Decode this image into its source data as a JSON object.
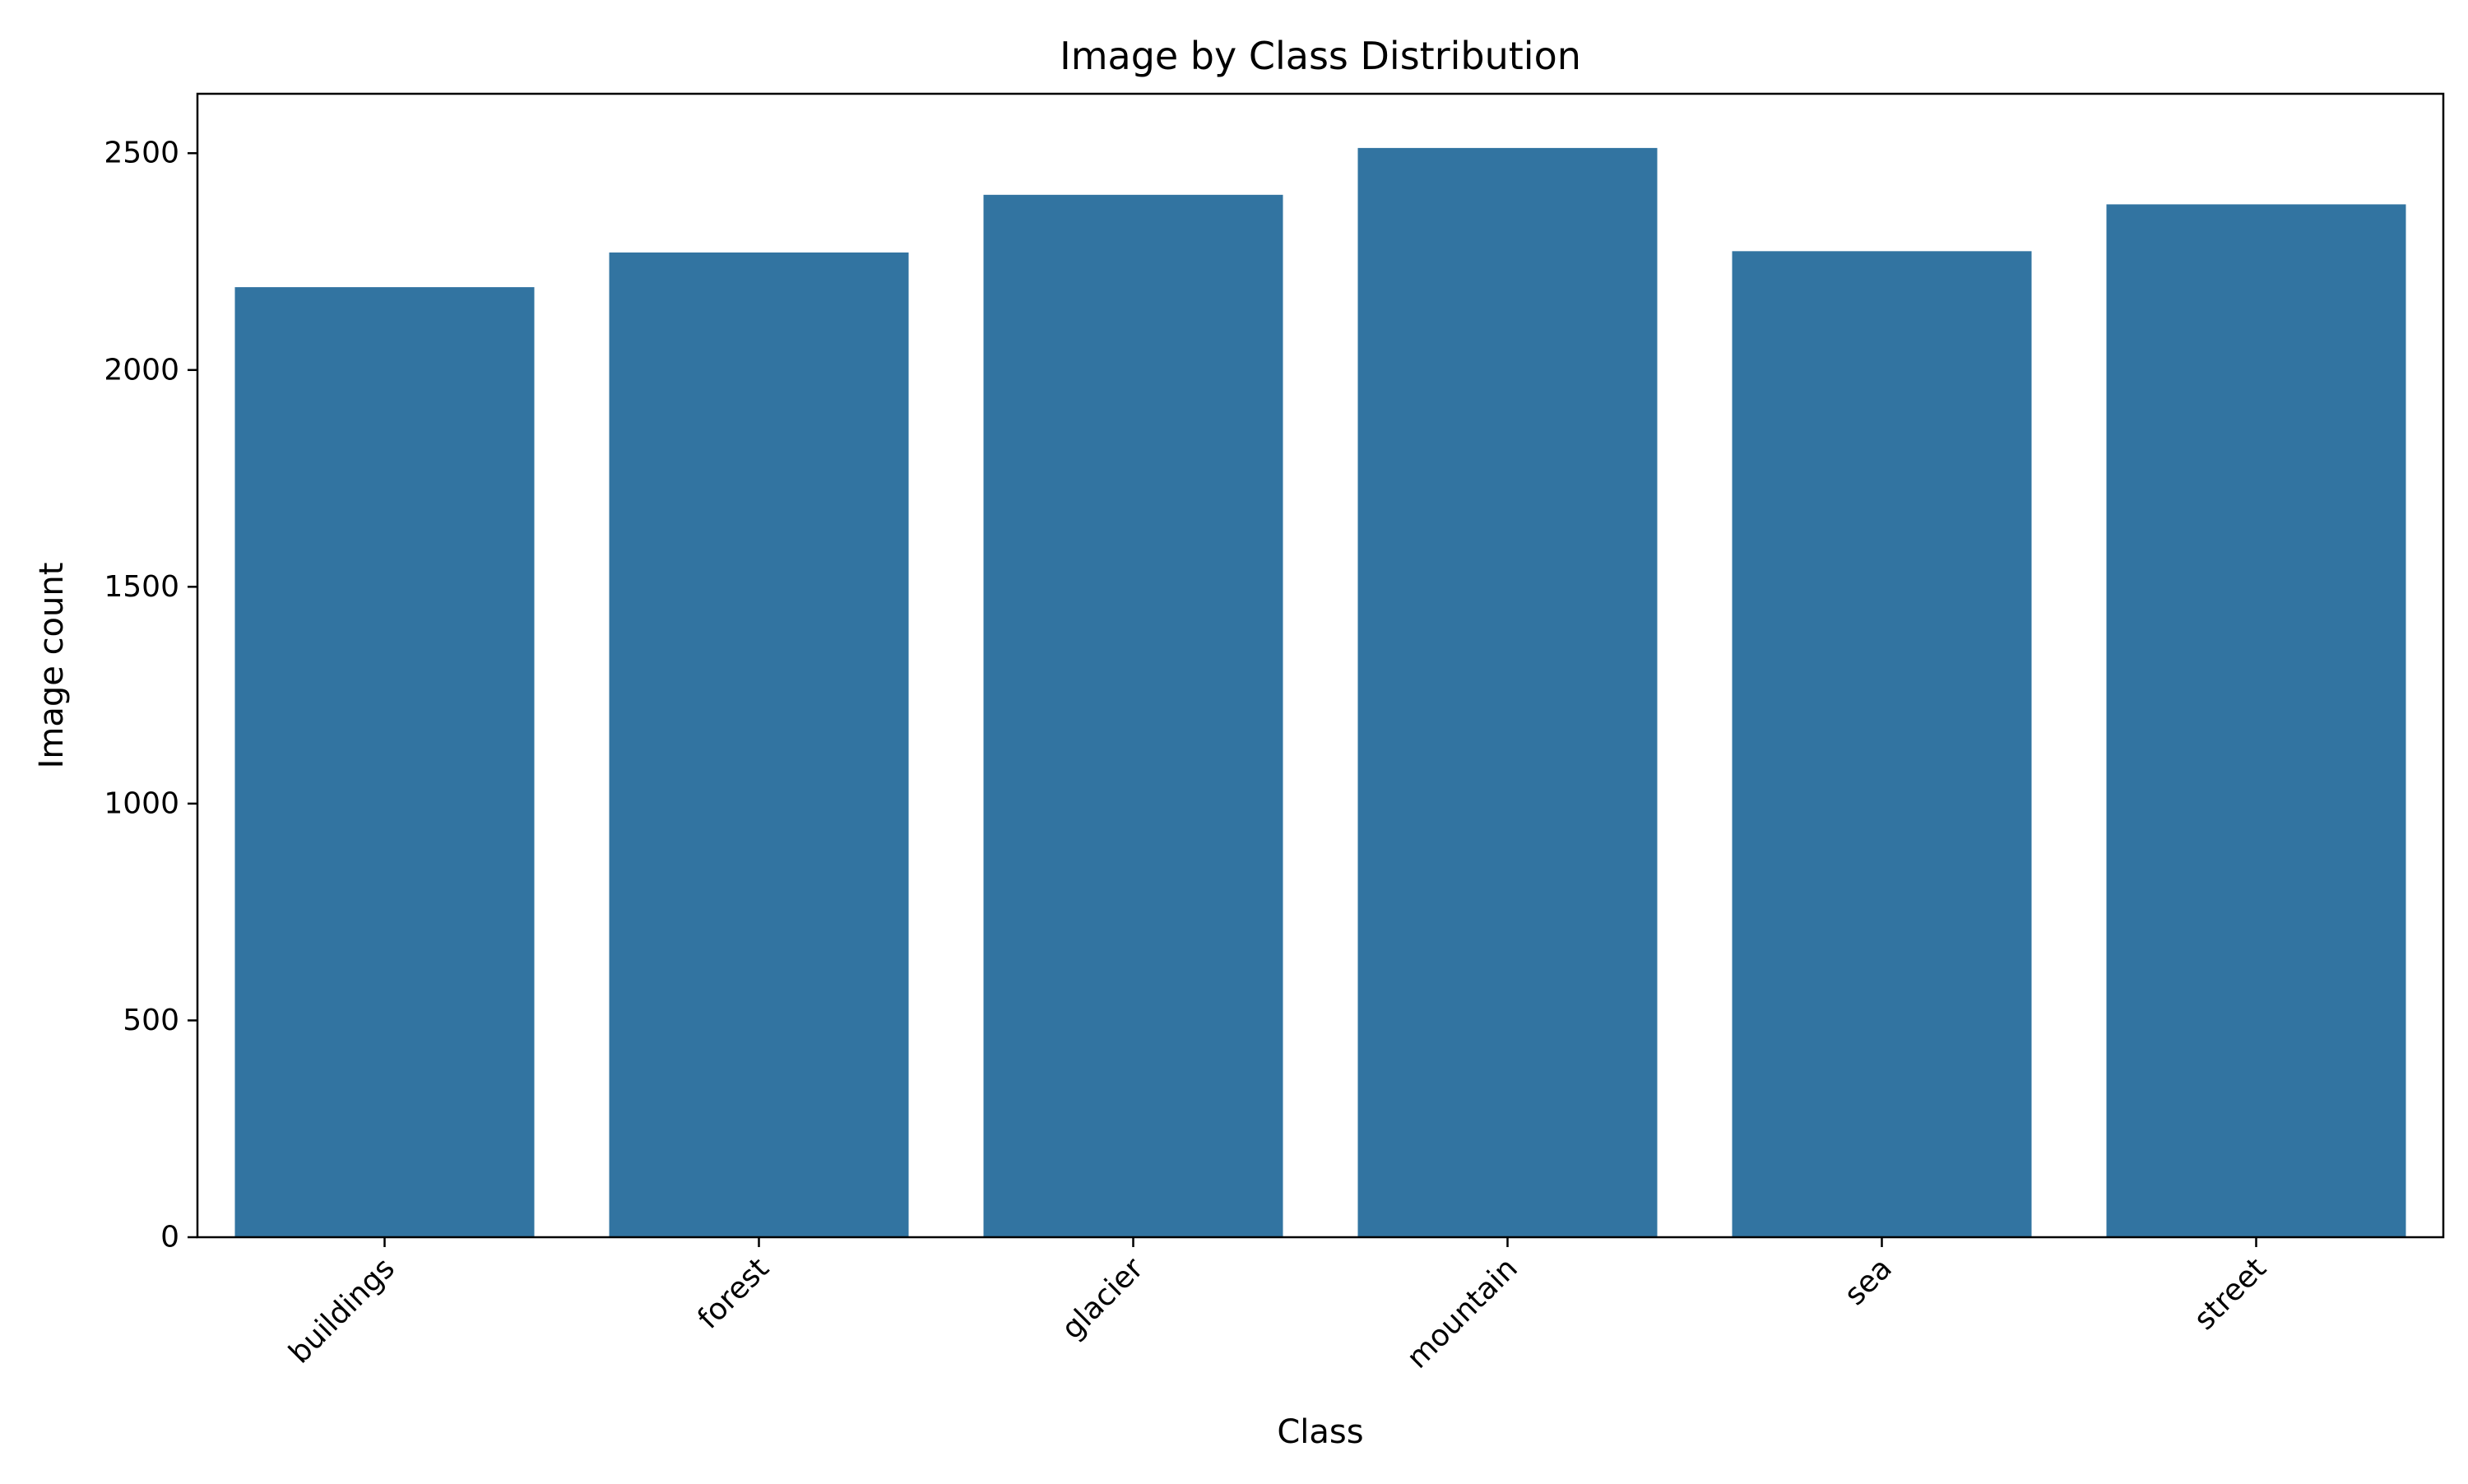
{
  "chart_data": {
    "type": "bar",
    "title": "Image by Class Distribution",
    "xlabel": "Class",
    "ylabel": "Image count",
    "categories": [
      "buildings",
      "forest",
      "glacier",
      "mountain",
      "sea",
      "street"
    ],
    "values": [
      2191,
      2271,
      2404,
      2512,
      2274,
      2382
    ],
    "yticks": [
      0,
      500,
      1000,
      1500,
      2000,
      2500
    ],
    "ylim": [
      0,
      2637
    ],
    "bar_color": "#3274a1",
    "grid": false,
    "legend": "none"
  }
}
